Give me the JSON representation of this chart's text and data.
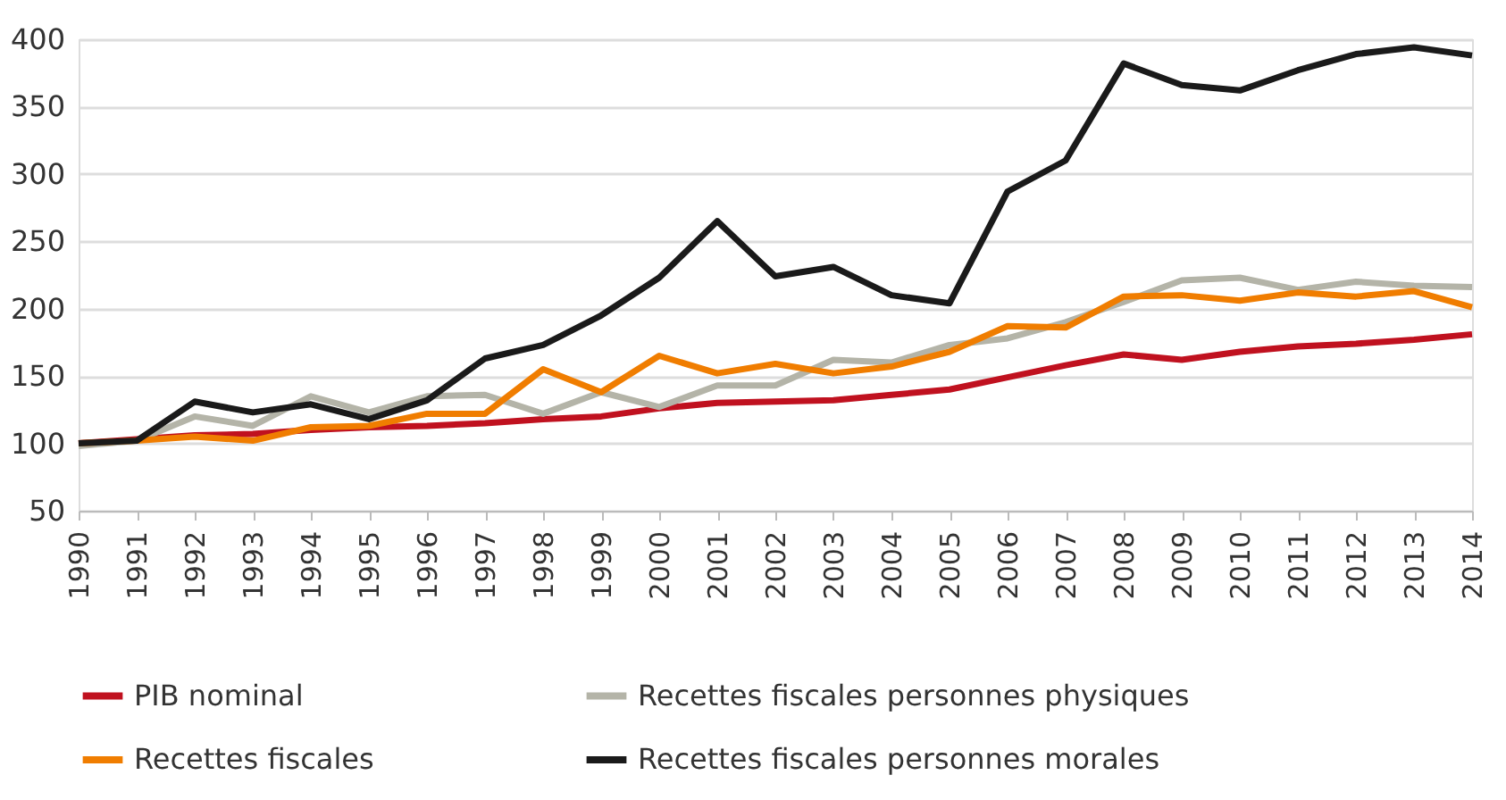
{
  "chart_data": {
    "type": "line",
    "x": [
      1990,
      1991,
      1992,
      1993,
      1994,
      1995,
      1996,
      1997,
      1998,
      1999,
      2000,
      2001,
      2002,
      2003,
      2004,
      2005,
      2006,
      2007,
      2008,
      2009,
      2010,
      2011,
      2012,
      2013,
      2014
    ],
    "series": [
      {
        "name": "PIB nominal",
        "color": "#c0111f",
        "values": [
          100,
          103,
          106,
          107,
          110,
          112,
          113,
          115,
          118,
          120,
          126,
          130,
          131,
          132,
          136,
          140,
          149,
          158,
          166,
          162,
          168,
          172,
          174,
          177,
          181
        ]
      },
      {
        "name": "Recettes fiscales personnes physiques",
        "color": "#b4b4a8",
        "values": [
          98,
          102,
          120,
          113,
          135,
          123,
          135,
          136,
          122,
          138,
          127,
          143,
          143,
          162,
          160,
          173,
          178,
          190,
          205,
          221,
          223,
          214,
          220,
          217,
          216
        ]
      },
      {
        "name": "Recettes fiscales",
        "color": "#f07d00",
        "values": [
          100,
          102,
          105,
          102,
          112,
          113,
          122,
          122,
          155,
          138,
          165,
          152,
          159,
          152,
          157,
          168,
          187,
          186,
          209,
          210,
          206,
          212,
          209,
          213,
          201
        ]
      },
      {
        "name": "Recettes fiscales personnes morales",
        "color": "#1a1a1a",
        "values": [
          100,
          102,
          131,
          123,
          129,
          118,
          132,
          163,
          173,
          195,
          223,
          265,
          224,
          231,
          210,
          204,
          287,
          310,
          382,
          366,
          362,
          377,
          389,
          394,
          388
        ]
      }
    ],
    "xlim": [
      1990,
      2014
    ],
    "xticks": [
      1990,
      1991,
      1992,
      1993,
      1994,
      1995,
      1996,
      1997,
      1998,
      1999,
      2000,
      2001,
      2002,
      2003,
      2004,
      2005,
      2006,
      2007,
      2008,
      2009,
      2010,
      2011,
      2012,
      2013,
      2014
    ],
    "ylim": [
      50,
      400
    ],
    "yticks": [
      50,
      100,
      150,
      200,
      250,
      300,
      350,
      400
    ],
    "grid": "y",
    "legend": "bottom",
    "marker": "none",
    "line_style": "solid"
  }
}
